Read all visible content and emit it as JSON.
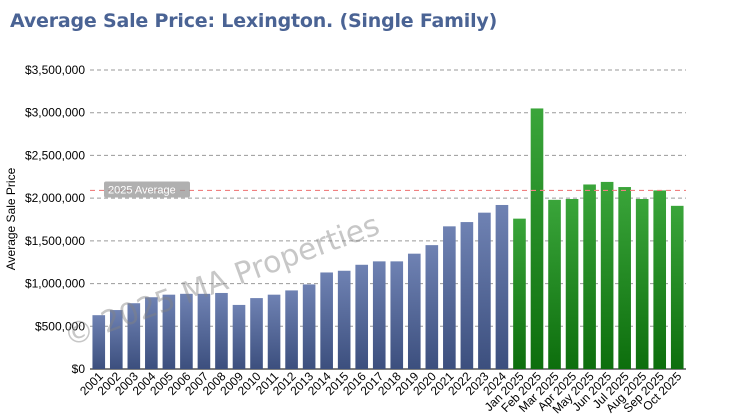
{
  "chart_data": {
    "type": "bar",
    "title": "Average Sale Price: Lexington. (Single Family)",
    "ylabel": "Average Sale Price",
    "xlabel": "",
    "ylim": [
      0,
      3500000
    ],
    "yticks": [
      0,
      500000,
      1000000,
      1500000,
      2000000,
      2500000,
      3000000,
      3500000
    ],
    "ytick_labels": [
      "$0",
      "$500,000",
      "$1,000,000",
      "$1,500,000",
      "$2,000,000",
      "$2,500,000",
      "$3,000,000",
      "$3,500,000"
    ],
    "grid": true,
    "categories": [
      "2001",
      "2002",
      "2003",
      "2004",
      "2005",
      "2006",
      "2007",
      "2008",
      "2009",
      "2010",
      "2011",
      "2012",
      "2013",
      "2014",
      "2015",
      "2016",
      "2017",
      "2018",
      "2019",
      "2020",
      "2021",
      "2022",
      "2023",
      "2024",
      "Jan 2025",
      "Feb 2025",
      "Mar 2025",
      "Apr 2025",
      "May 2025",
      "Jun 2025",
      "Jul 2025",
      "Aug 2025",
      "Sep 2025",
      "Oct 2025"
    ],
    "values": [
      630000,
      690000,
      770000,
      840000,
      870000,
      880000,
      880000,
      890000,
      750000,
      830000,
      870000,
      920000,
      990000,
      1130000,
      1150000,
      1220000,
      1260000,
      1260000,
      1350000,
      1450000,
      1670000,
      1720000,
      1830000,
      1920000,
      1760000,
      3050000,
      1980000,
      1990000,
      2160000,
      2190000,
      2130000,
      1990000,
      2090000,
      1910000
    ],
    "series_colors": {
      "annual": "#55689a",
      "monthly": "#1f8f1f"
    },
    "reference_line": {
      "label": "2025 Average",
      "value": 2090000,
      "color": "#f08080"
    },
    "watermark": "© 2025 MA Properties"
  }
}
